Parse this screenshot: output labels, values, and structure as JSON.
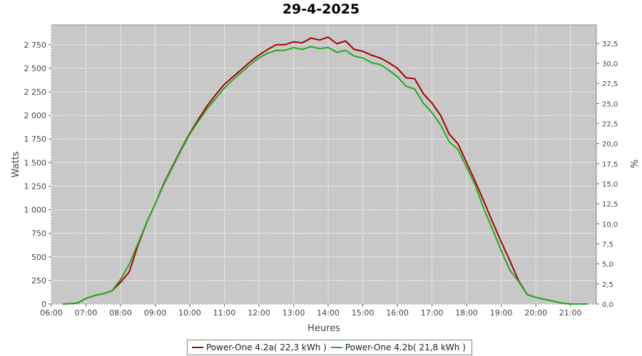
{
  "chart_data": {
    "type": "line",
    "title": "29-4-2025",
    "xlabel": "Heures",
    "ylabel": "Watts",
    "y2label": "%",
    "xticks": [
      "06:00",
      "07:00",
      "08:00",
      "09:00",
      "10:00",
      "11:00",
      "12:00",
      "13:00",
      "14:00",
      "15:00",
      "16:00",
      "17:00",
      "18:00",
      "19:00",
      "20:00",
      "21:00"
    ],
    "yticks": [
      "0",
      "250",
      "500",
      "750",
      "1 000",
      "1 250",
      "1 500",
      "1 750",
      "2 000",
      "2 250",
      "2 500",
      "2 750"
    ],
    "y2ticks": [
      "0,0",
      "2,5",
      "5,0",
      "7,5",
      "10,0",
      "12,5",
      "15,0",
      "17,5",
      "20,0",
      "22,5",
      "25,0",
      "27,5",
      "30,0",
      "32,5"
    ],
    "xlim": [
      6.0,
      21.75
    ],
    "ylim": [
      0,
      2960
    ],
    "y2lim": [
      0,
      34.8
    ],
    "grid": true,
    "legend_position": "bottom",
    "series": [
      {
        "name": "Power-One 4.2a( 22,3 kWh )",
        "color": "#aa0000",
        "x": [
          6.33,
          6.75,
          7.0,
          7.25,
          7.5,
          7.75,
          8.0,
          8.25,
          8.5,
          8.75,
          9.0,
          9.25,
          9.5,
          9.75,
          10.0,
          10.25,
          10.5,
          10.75,
          11.0,
          11.25,
          11.5,
          11.75,
          12.0,
          12.25,
          12.5,
          12.75,
          13.0,
          13.25,
          13.5,
          13.75,
          14.0,
          14.25,
          14.5,
          14.75,
          15.0,
          15.25,
          15.5,
          15.75,
          16.0,
          16.25,
          16.5,
          16.75,
          17.0,
          17.25,
          17.5,
          17.75,
          18.0,
          18.25,
          18.5,
          18.75,
          19.0,
          19.25,
          19.5,
          19.75,
          20.0,
          20.25,
          20.5,
          20.75,
          21.0,
          21.25,
          21.5
        ],
        "y": [
          0,
          10,
          60,
          90,
          110,
          140,
          230,
          340,
          620,
          860,
          1060,
          1280,
          1460,
          1640,
          1810,
          1960,
          2100,
          2220,
          2330,
          2410,
          2490,
          2570,
          2640,
          2700,
          2750,
          2750,
          2780,
          2770,
          2820,
          2800,
          2830,
          2760,
          2790,
          2700,
          2680,
          2640,
          2610,
          2560,
          2500,
          2400,
          2390,
          2230,
          2130,
          2000,
          1800,
          1700,
          1500,
          1300,
          1090,
          870,
          660,
          460,
          250,
          100,
          70,
          50,
          30,
          10,
          0,
          0,
          0
        ]
      },
      {
        "name": "Power-One 4.2b( 21,8 kWh )",
        "color": "#22aa22",
        "x": [
          6.33,
          6.75,
          7.0,
          7.25,
          7.5,
          7.75,
          8.0,
          8.25,
          8.5,
          8.75,
          9.0,
          9.25,
          9.5,
          9.75,
          10.0,
          10.25,
          10.5,
          10.75,
          11.0,
          11.25,
          11.5,
          11.75,
          12.0,
          12.25,
          12.5,
          12.75,
          13.0,
          13.25,
          13.5,
          13.75,
          14.0,
          14.25,
          14.5,
          14.75,
          15.0,
          15.25,
          15.5,
          15.75,
          16.0,
          16.25,
          16.5,
          16.75,
          17.0,
          17.25,
          17.5,
          17.75,
          18.0,
          18.25,
          18.5,
          18.75,
          19.0,
          19.25,
          19.5,
          19.75,
          20.0,
          20.25,
          20.5,
          20.75,
          21.0,
          21.25,
          21.5
        ],
        "y": [
          0,
          10,
          60,
          90,
          110,
          140,
          260,
          420,
          640,
          860,
          1060,
          1270,
          1450,
          1630,
          1800,
          1940,
          2070,
          2180,
          2290,
          2380,
          2460,
          2540,
          2610,
          2660,
          2690,
          2690,
          2720,
          2700,
          2730,
          2710,
          2720,
          2670,
          2690,
          2630,
          2610,
          2560,
          2540,
          2480,
          2410,
          2310,
          2280,
          2130,
          2030,
          1900,
          1720,
          1640,
          1450,
          1260,
          1010,
          790,
          570,
          360,
          240,
          100,
          70,
          50,
          30,
          10,
          0,
          0,
          0
        ]
      }
    ]
  }
}
